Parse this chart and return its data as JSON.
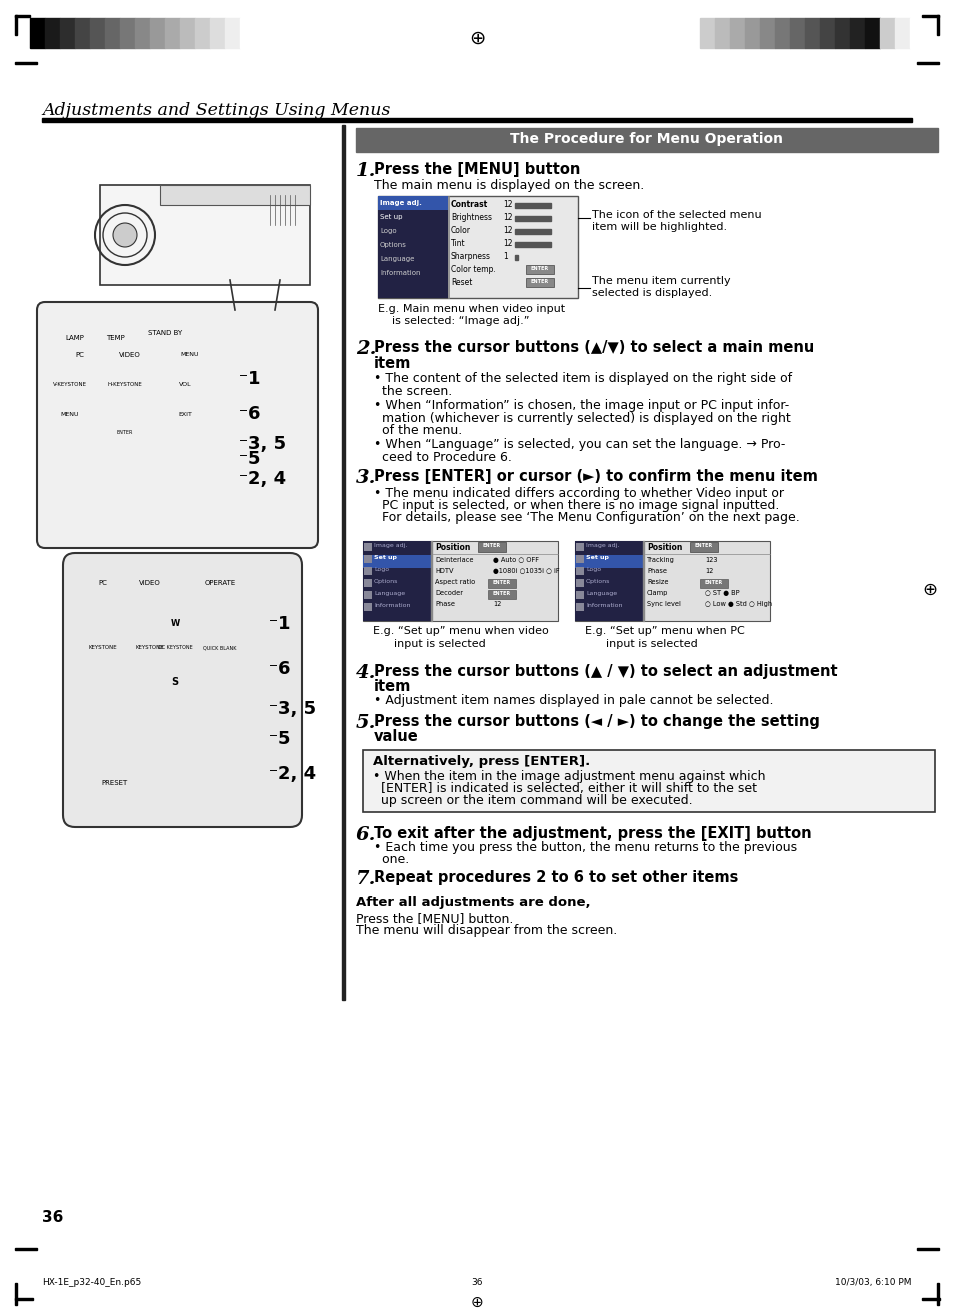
{
  "page_bg": "#ffffff",
  "title_section": "Adjustments and Settings Using Menus",
  "procedure_title": "The Procedure for Menu Operation",
  "procedure_title_bg": "#666666",
  "procedure_title_color": "#ffffff",
  "page_num": "36",
  "footer_left": "HX-1E_p32-40_En.p65",
  "footer_center": "36",
  "footer_right": "10/3/03, 6:10 PM",
  "callout1": "The icon of the selected menu\nitem will be highlighted.",
  "callout2": "The menu item currently\nselected is displayed.",
  "menu_caption1_line1": "E.g. Main menu when video input",
  "menu_caption1_line2": "    is selected: “Image adj.”",
  "menu_caption2_line1": "E.g. “Set up” menu when video",
  "menu_caption2_line2": "      input is selected",
  "menu_caption3_line1": "E.g. “Set up” menu when PC",
  "menu_caption3_line2": "      input is selected",
  "strip_left": [
    "#000000",
    "#1a1a1a",
    "#2d2d2d",
    "#444444",
    "#555555",
    "#666666",
    "#777777",
    "#888888",
    "#999999",
    "#aaaaaa",
    "#bbbbbb",
    "#cccccc",
    "#dddddd",
    "#eeeeee",
    "#ffffff"
  ],
  "strip_right": [
    "#cccccc",
    "#bbbbbb",
    "#aaaaaa",
    "#999999",
    "#888888",
    "#777777",
    "#666666",
    "#555555",
    "#444444",
    "#333333",
    "#222222",
    "#111111",
    "#cccccc",
    "#eeeeee",
    "#ffffff"
  ]
}
